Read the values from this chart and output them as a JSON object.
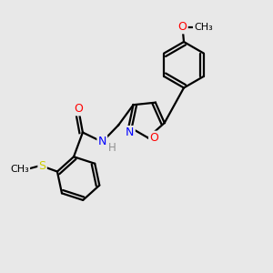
{
  "background_color": "#e8e8e8",
  "bond_color": "#000000",
  "bond_width": 1.6,
  "atom_colors": {
    "N": "#0000ff",
    "O": "#ff0000",
    "S": "#cccc00",
    "H": "#909090",
    "C": "#000000"
  },
  "figsize": [
    3.0,
    3.0
  ],
  "dpi": 100
}
